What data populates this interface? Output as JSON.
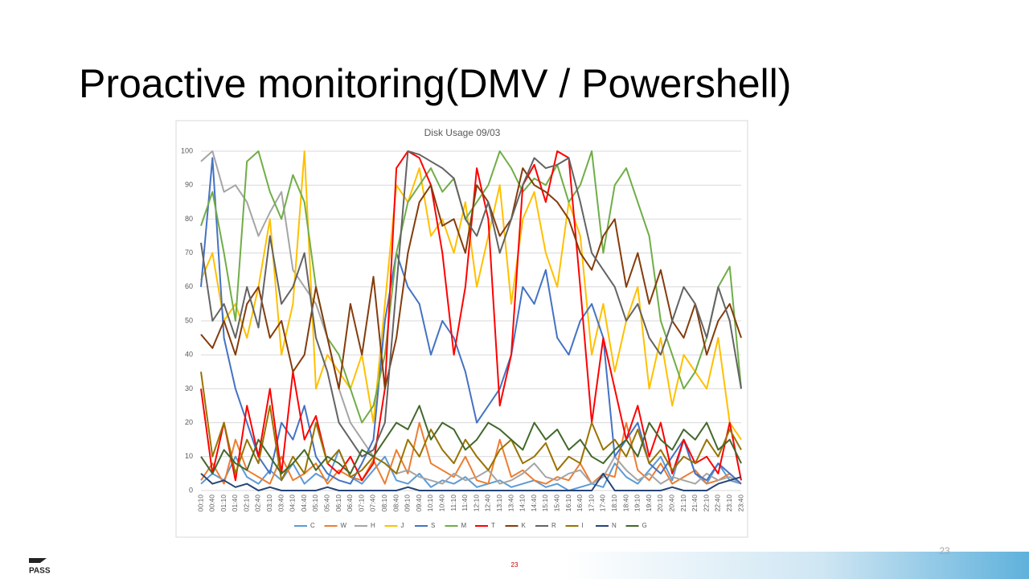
{
  "slide": {
    "title": "Proactive monitoring(DMV / Powershell)",
    "page_number": "23",
    "page_number_corner": "23",
    "logo": "PASS"
  },
  "chart_data": {
    "type": "line",
    "title": "Disk Usage 09/03",
    "categories": [
      "00:10",
      "00:40",
      "01:10",
      "01:40",
      "02:10",
      "02:40",
      "03:10",
      "03:40",
      "04:10",
      "04:40",
      "05:10",
      "05:40",
      "06:10",
      "06:40",
      "07:10",
      "07:40",
      "08:10",
      "08:40",
      "09:10",
      "09:40",
      "10:10",
      "10:40",
      "11:10",
      "11:40",
      "12:10",
      "12:40",
      "13:10",
      "13:40",
      "14:10",
      "14:40",
      "15:10",
      "15:40",
      "16:10",
      "16:40",
      "17:10",
      "17:40",
      "18:10",
      "18:40",
      "19:10",
      "19:40",
      "20:10",
      "20:40",
      "21:10",
      "21:40",
      "22:10",
      "22:40",
      "23:10",
      "23:40"
    ],
    "ylim": [
      0,
      100
    ],
    "yticks": [
      0,
      10,
      20,
      30,
      40,
      50,
      60,
      70,
      80,
      90,
      100
    ],
    "grid": true,
    "legend": "bottom",
    "series": [
      {
        "name": "C",
        "color": "#5b9bd5",
        "values": [
          2,
          5,
          3,
          10,
          4,
          2,
          6,
          3,
          8,
          2,
          5,
          3,
          12,
          4,
          2,
          6,
          10,
          3,
          2,
          5,
          1,
          3,
          2,
          4,
          1,
          2,
          3,
          1,
          2,
          3,
          1,
          2,
          0,
          1,
          2,
          1,
          8,
          4,
          2,
          6,
          10,
          3,
          15,
          5,
          2,
          8,
          3,
          2
        ]
      },
      {
        "name": "W",
        "color": "#ed7d31",
        "values": [
          3,
          8,
          2,
          15,
          6,
          4,
          2,
          10,
          3,
          5,
          8,
          2,
          6,
          4,
          3,
          9,
          2,
          12,
          5,
          20,
          8,
          6,
          4,
          10,
          3,
          2,
          15,
          4,
          6,
          3,
          2,
          4,
          3,
          8,
          2,
          5,
          4,
          20,
          6,
          3,
          8,
          2,
          4,
          6,
          2,
          3,
          5,
          2
        ]
      },
      {
        "name": "H",
        "color": "#a5a5a5",
        "values": [
          97,
          100,
          88,
          90,
          85,
          75,
          82,
          88,
          65,
          60,
          55,
          45,
          30,
          20,
          15,
          10,
          8,
          5,
          6,
          4,
          3,
          2,
          5,
          3,
          4,
          6,
          2,
          3,
          5,
          8,
          4,
          3,
          5,
          6,
          2,
          4,
          10,
          6,
          3,
          5,
          2,
          4,
          3,
          2,
          5,
          3,
          4,
          2
        ]
      },
      {
        "name": "J",
        "color": "#ffc000",
        "values": [
          62,
          70,
          50,
          55,
          45,
          60,
          80,
          40,
          55,
          100,
          30,
          40,
          35,
          30,
          40,
          20,
          55,
          90,
          85,
          95,
          75,
          80,
          70,
          85,
          60,
          75,
          90,
          55,
          80,
          88,
          70,
          60,
          85,
          75,
          40,
          55,
          35,
          50,
          60,
          30,
          45,
          25,
          40,
          35,
          30,
          45,
          20,
          15
        ]
      },
      {
        "name": "S",
        "color": "#4472c4",
        "values": [
          60,
          98,
          45,
          30,
          20,
          10,
          5,
          20,
          15,
          25,
          10,
          5,
          3,
          2,
          8,
          15,
          50,
          70,
          60,
          55,
          40,
          50,
          45,
          35,
          20,
          25,
          30,
          40,
          60,
          55,
          65,
          45,
          40,
          50,
          55,
          45,
          10,
          15,
          20,
          8,
          5,
          10,
          15,
          5,
          3,
          8,
          5,
          2
        ]
      },
      {
        "name": "M",
        "color": "#70ad47",
        "values": [
          78,
          88,
          70,
          50,
          97,
          100,
          88,
          80,
          93,
          85,
          60,
          45,
          40,
          30,
          20,
          25,
          40,
          70,
          85,
          90,
          95,
          88,
          92,
          80,
          85,
          90,
          100,
          95,
          88,
          92,
          90,
          96,
          85,
          90,
          100,
          70,
          90,
          95,
          85,
          75,
          50,
          40,
          30,
          35,
          45,
          60,
          66,
          30
        ]
      },
      {
        "name": "T",
        "color": "#ff0000",
        "values": [
          30,
          5,
          20,
          3,
          25,
          10,
          30,
          5,
          35,
          15,
          22,
          8,
          5,
          10,
          3,
          8,
          30,
          95,
          100,
          98,
          90,
          70,
          40,
          60,
          95,
          80,
          25,
          40,
          90,
          96,
          85,
          100,
          98,
          60,
          20,
          45,
          30,
          15,
          25,
          10,
          20,
          5,
          15,
          8,
          10,
          5,
          20,
          3
        ]
      },
      {
        "name": "K",
        "color": "#843c0c",
        "values": [
          46,
          42,
          50,
          40,
          55,
          60,
          45,
          50,
          35,
          40,
          60,
          45,
          30,
          55,
          40,
          63,
          30,
          45,
          70,
          85,
          90,
          78,
          80,
          70,
          90,
          85,
          75,
          80,
          95,
          90,
          88,
          85,
          80,
          70,
          65,
          75,
          80,
          60,
          70,
          55,
          65,
          50,
          45,
          55,
          40,
          50,
          55,
          45
        ]
      },
      {
        "name": "R",
        "color": "#636363",
        "values": [
          73,
          50,
          55,
          45,
          60,
          48,
          75,
          55,
          60,
          70,
          45,
          35,
          20,
          15,
          10,
          12,
          20,
          60,
          100,
          99,
          97,
          95,
          92,
          80,
          75,
          85,
          70,
          80,
          90,
          98,
          95,
          96,
          98,
          85,
          70,
          65,
          60,
          50,
          55,
          45,
          40,
          50,
          60,
          55,
          45,
          60,
          50,
          30
        ]
      },
      {
        "name": "I",
        "color": "#997300",
        "values": [
          35,
          10,
          20,
          5,
          15,
          8,
          25,
          3,
          10,
          5,
          20,
          8,
          12,
          4,
          6,
          10,
          8,
          5,
          15,
          10,
          18,
          12,
          8,
          15,
          10,
          6,
          12,
          15,
          8,
          10,
          14,
          6,
          10,
          8,
          20,
          12,
          15,
          10,
          18,
          8,
          12,
          6,
          10,
          8,
          15,
          10,
          18,
          12
        ]
      },
      {
        "name": "N",
        "color": "#264478",
        "values": [
          5,
          2,
          3,
          1,
          2,
          0,
          1,
          0,
          0,
          0,
          0,
          1,
          0,
          0,
          0,
          0,
          0,
          0,
          1,
          0,
          0,
          0,
          0,
          0,
          0,
          0,
          0,
          0,
          0,
          0,
          0,
          0,
          0,
          0,
          0,
          5,
          0,
          0,
          0,
          0,
          0,
          1,
          0,
          0,
          0,
          2,
          3,
          4
        ]
      },
      {
        "name": "G",
        "color": "#43682b",
        "values": [
          10,
          5,
          12,
          8,
          6,
          15,
          10,
          5,
          8,
          12,
          6,
          10,
          8,
          5,
          12,
          10,
          15,
          20,
          18,
          25,
          15,
          20,
          18,
          12,
          15,
          20,
          18,
          15,
          12,
          20,
          15,
          18,
          12,
          15,
          10,
          8,
          12,
          15,
          10,
          20,
          15,
          12,
          18,
          15,
          20,
          12,
          15,
          8
        ]
      }
    ]
  }
}
